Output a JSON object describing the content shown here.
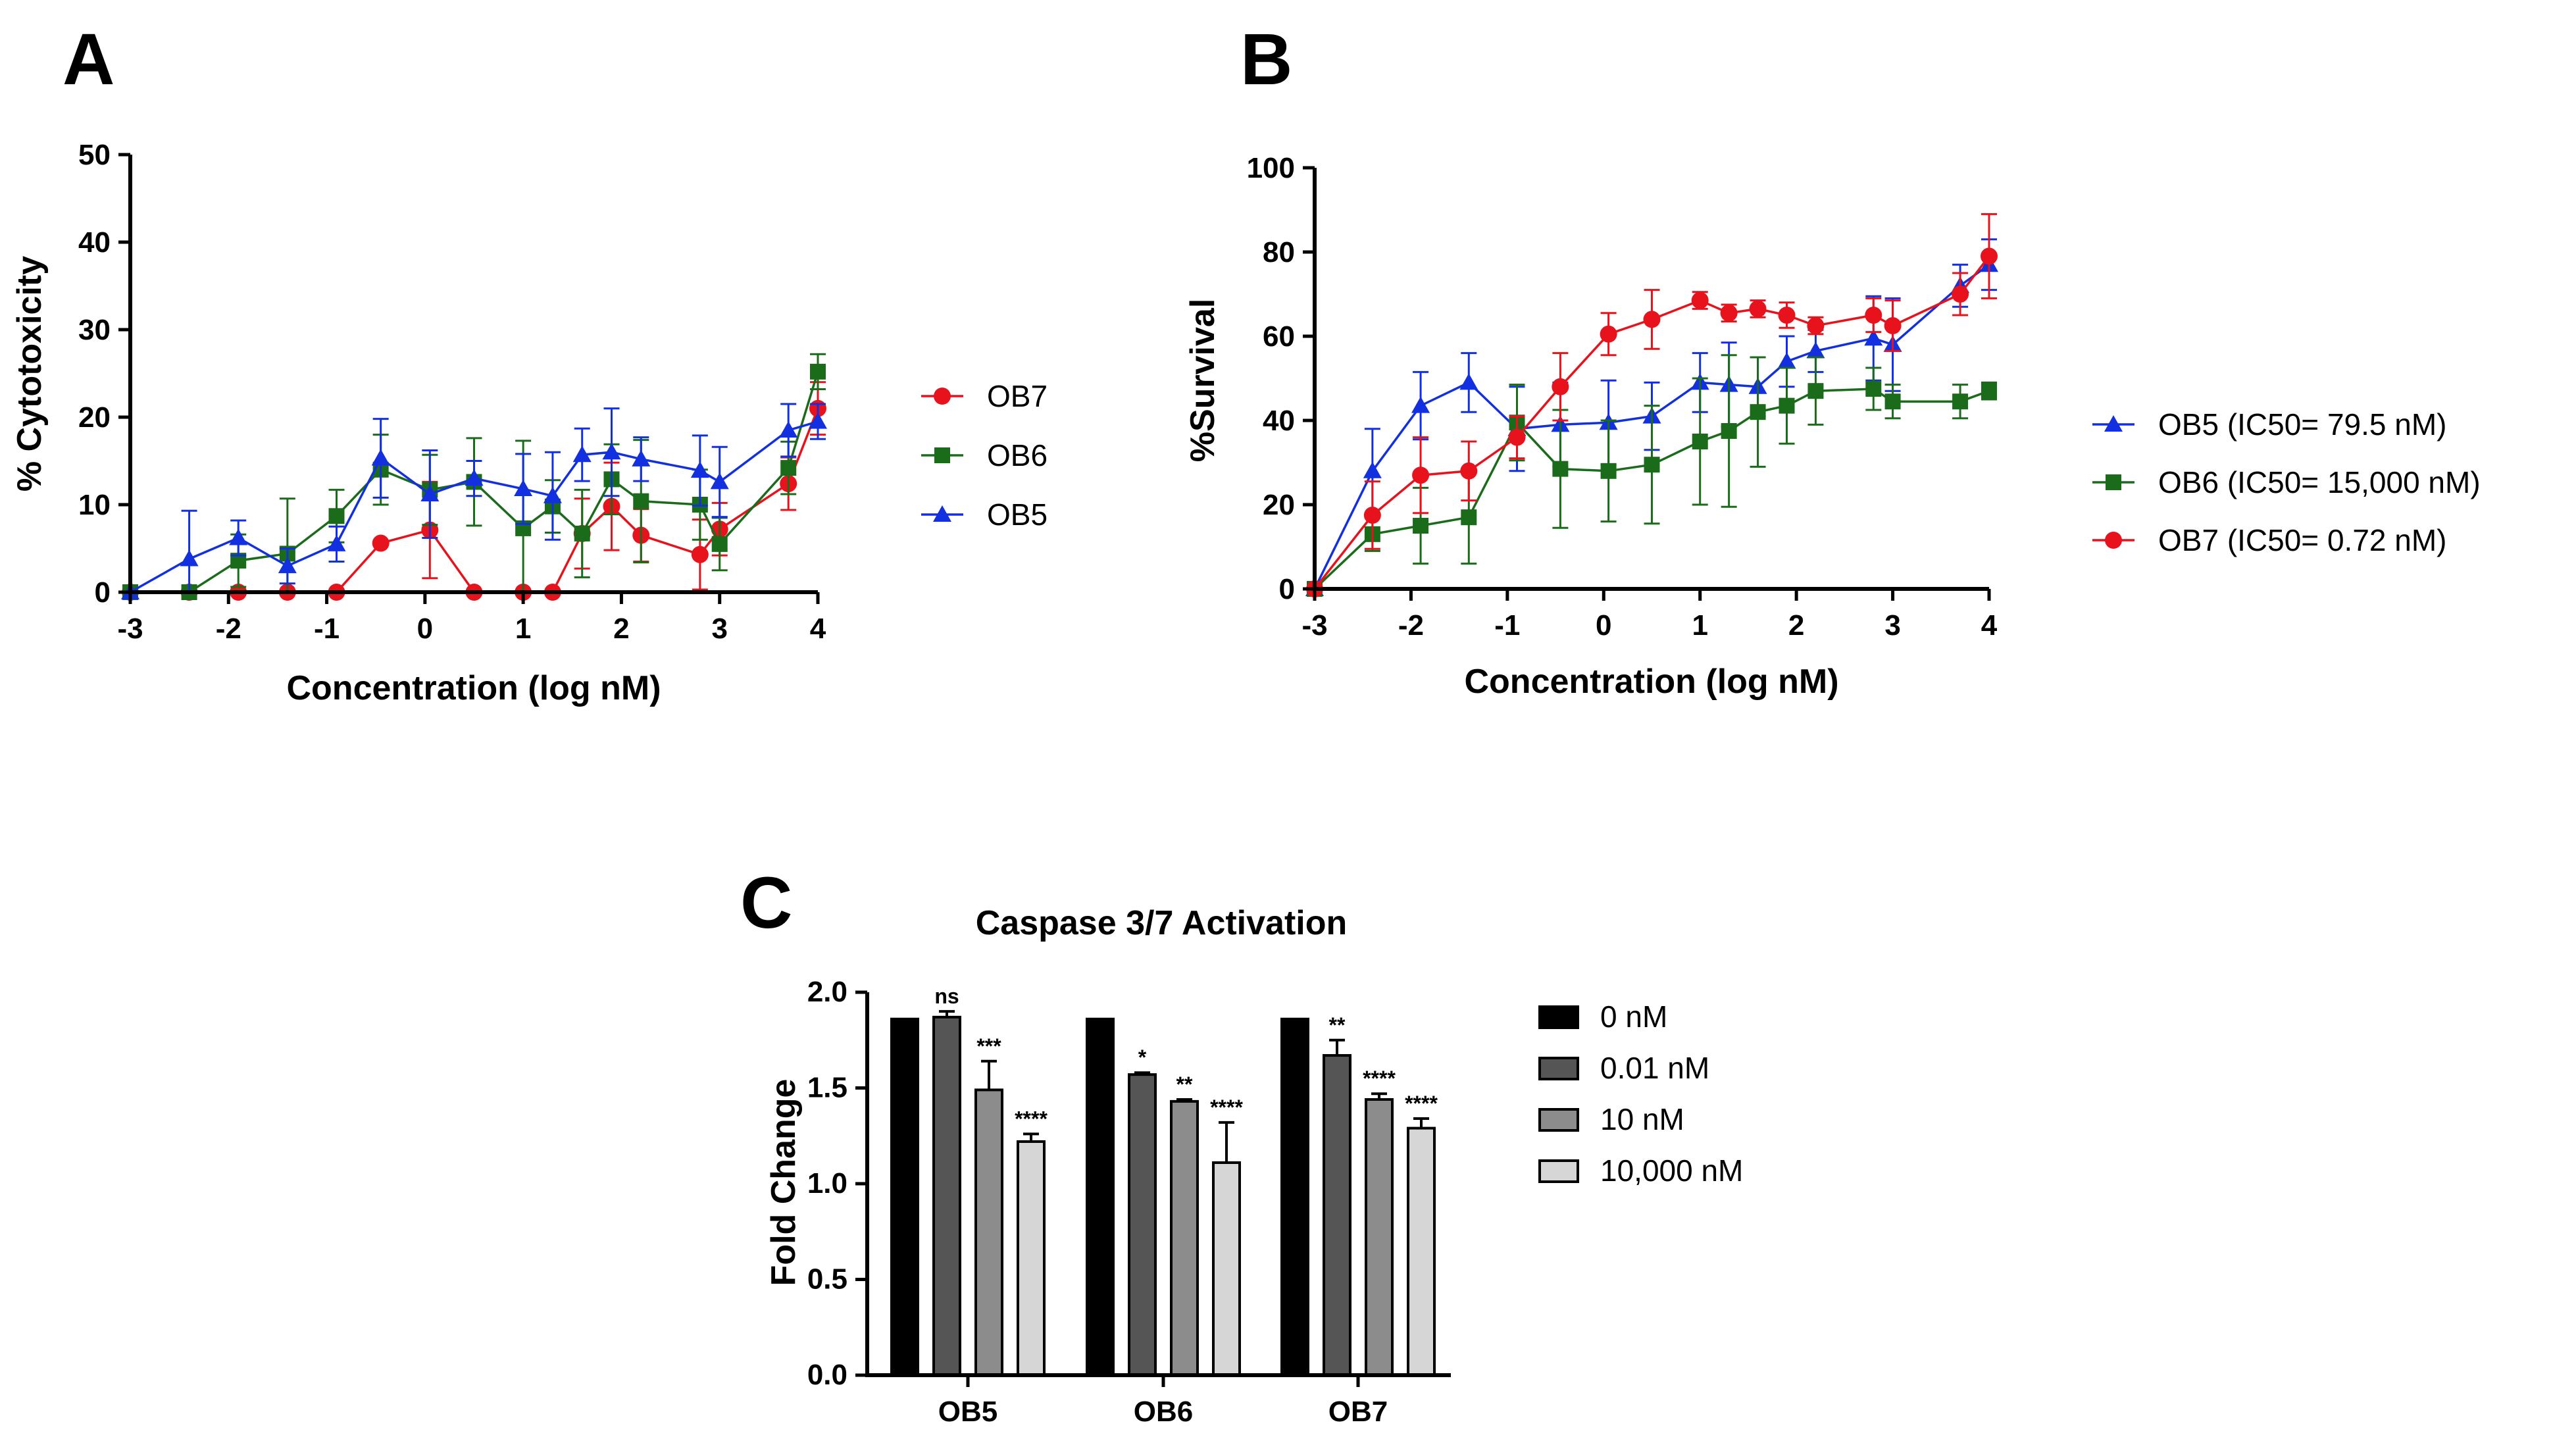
{
  "colors": {
    "OB7": "#e8121c",
    "OB6": "#1a6b1a",
    "OB5": "#1230e0",
    "bar0": "#000000",
    "bar001": "#555555",
    "bar10": "#8c8c8c",
    "bar10000": "#d6d6d6"
  },
  "panel_letters": {
    "a": "A",
    "b": "B",
    "c": "C"
  },
  "chart_data": [
    {
      "id": "A",
      "type": "line",
      "title": "",
      "xlabel": "Concentration (log nM)",
      "ylabel": "% Cytotoxicity",
      "xlim": [
        -3,
        4
      ],
      "ylim": [
        0,
        50
      ],
      "xticks": [
        -3,
        -2,
        -1,
        0,
        1,
        2,
        3,
        4
      ],
      "xtick_labels": [
        "-3",
        "-2",
        "-1",
        "0",
        "1",
        "2",
        "3",
        "4"
      ],
      "yticks": [
        0,
        10,
        20,
        30,
        40,
        50
      ],
      "ytick_labels": [
        "0",
        "10",
        "20",
        "30",
        "40",
        "50"
      ],
      "legend": [
        "OB7",
        "OB6",
        "OB5"
      ],
      "series": [
        {
          "name": "OB7",
          "marker": "circle",
          "x": [
            -3,
            -2.4,
            -1.9,
            -1.4,
            -0.9,
            -0.45,
            0.05,
            0.5,
            1.0,
            1.3,
            1.6,
            1.9,
            2.2,
            2.8,
            3.0,
            3.7,
            4.0
          ],
          "y": [
            0,
            0,
            0,
            0,
            0,
            5.6,
            7.1,
            0,
            0,
            0,
            6.7,
            9.8,
            6.5,
            4.3,
            7.2,
            12.4,
            21.0
          ],
          "err": [
            0,
            0,
            0,
            0,
            0,
            0,
            5.5,
            0,
            0,
            0,
            4.0,
            5.0,
            3.0,
            4.0,
            3.0,
            3.0,
            3.0
          ]
        },
        {
          "name": "OB6",
          "marker": "square",
          "x": [
            -3,
            -2.4,
            -1.9,
            -1.4,
            -0.9,
            -0.45,
            0.05,
            0.5,
            1.0,
            1.3,
            1.6,
            1.9,
            2.2,
            2.8,
            3.0,
            3.7,
            4.0
          ],
          "y": [
            0,
            0,
            3.6,
            4.4,
            8.7,
            14.0,
            11.7,
            12.6,
            7.3,
            9.8,
            6.7,
            12.9,
            10.4,
            10.0,
            5.5,
            14.2,
            25.2
          ],
          "err": [
            0,
            0,
            3.0,
            6.3,
            3.0,
            4.0,
            4.0,
            5.0,
            10.0,
            3.0,
            5.0,
            4.0,
            7.0,
            4.0,
            3.0,
            3.0,
            2.0
          ]
        },
        {
          "name": "OB5",
          "marker": "triangle",
          "x": [
            -3,
            -2.4,
            -1.9,
            -1.4,
            -0.9,
            -0.45,
            0.05,
            0.5,
            1.0,
            1.3,
            1.6,
            1.9,
            2.2,
            2.8,
            3.0,
            3.7,
            4.0
          ],
          "y": [
            0,
            3.8,
            6.2,
            3.0,
            5.5,
            15.3,
            11.2,
            13.0,
            11.8,
            11.0,
            15.7,
            16.0,
            15.2,
            13.9,
            12.6,
            18.5,
            19.5
          ],
          "err": [
            0,
            5.5,
            2.0,
            2.0,
            2.0,
            4.5,
            5.0,
            2.0,
            4.0,
            5.0,
            3.0,
            5.0,
            2.5,
            4.0,
            4.0,
            3.0,
            2.0
          ]
        }
      ]
    },
    {
      "id": "B",
      "type": "line",
      "title": "",
      "xlabel": "Concentration (log nM)",
      "ylabel": "%Survival",
      "xlim": [
        -3,
        4
      ],
      "ylim": [
        0,
        100
      ],
      "xticks": [
        -3,
        -2,
        -1,
        0,
        1,
        2,
        3,
        4
      ],
      "xtick_labels": [
        "-3",
        "-2",
        "-1",
        "0",
        "1",
        "2",
        "3",
        "4"
      ],
      "yticks": [
        0,
        20,
        40,
        60,
        80,
        100
      ],
      "ytick_labels": [
        "0",
        "20",
        "40",
        "60",
        "80",
        "100"
      ],
      "legend": [
        "OB5 (IC50= 79.5 nM)",
        "OB6 (IC50= 15,000 nM)",
        "OB7 (IC50= 0.72 nM)"
      ],
      "series": [
        {
          "name": "OB5 (IC50= 79.5 nM)",
          "marker": "triangle",
          "color_key": "OB5",
          "x": [
            -3,
            -2.4,
            -1.9,
            -1.4,
            -0.9,
            -0.45,
            0.05,
            0.5,
            1.0,
            1.3,
            1.6,
            1.9,
            2.2,
            2.8,
            3.0,
            3.7,
            4.0
          ],
          "y": [
            0,
            28,
            43.5,
            49,
            38,
            39,
            39.5,
            41,
            49,
            48.5,
            48,
            54,
            56.5,
            59.5,
            58,
            72,
            77
          ],
          "err": [
            0,
            10,
            8,
            7,
            10,
            10,
            10,
            8,
            7,
            10,
            7,
            6,
            5,
            10,
            11,
            5,
            6
          ]
        },
        {
          "name": "OB6 (IC50= 15,000 nM)",
          "marker": "square",
          "color_key": "OB6",
          "x": [
            -3,
            -2.4,
            -1.9,
            -1.4,
            -0.9,
            -0.45,
            0.05,
            0.5,
            1.0,
            1.3,
            1.6,
            1.9,
            2.2,
            2.8,
            3.0,
            3.7,
            4.0
          ],
          "y": [
            0,
            13,
            15,
            17,
            39.5,
            28.5,
            28,
            29.5,
            35,
            37.5,
            42,
            43.5,
            47,
            47.5,
            44.5,
            44.5,
            47
          ],
          "err": [
            0,
            4,
            9,
            11,
            9,
            14,
            12,
            14,
            15,
            18,
            13,
            9,
            8,
            5,
            4,
            4,
            2
          ]
        },
        {
          "name": "OB7 (IC50= 0.72 nM)",
          "marker": "circle",
          "color_key": "OB7",
          "x": [
            -3,
            -2.4,
            -1.9,
            -1.4,
            -0.9,
            -0.45,
            0.05,
            0.5,
            1.0,
            1.3,
            1.6,
            1.9,
            2.2,
            2.8,
            3.0,
            3.7,
            4.0
          ],
          "y": [
            0,
            17.5,
            27,
            28,
            36,
            48,
            60.5,
            64,
            68.5,
            65.5,
            66.5,
            65,
            62.5,
            65,
            62.5,
            70,
            79
          ],
          "err": [
            0,
            8,
            9,
            7,
            5,
            8,
            5,
            7,
            2,
            2,
            2,
            3,
            2,
            4,
            6,
            5,
            10
          ]
        }
      ]
    },
    {
      "id": "C",
      "type": "bar",
      "title": "Caspase 3/7 Activation",
      "xlabel": "",
      "ylabel": "Fold Change",
      "ylim": [
        0,
        2.0
      ],
      "yticks": [
        0,
        0.5,
        1.0,
        1.5,
        2.0
      ],
      "ytick_labels": [
        "0.0",
        "0.5",
        "1.0",
        "1.5",
        "2.0"
      ],
      "categories": [
        "OB5",
        "OB6",
        "OB7"
      ],
      "legend": [
        "0 nM",
        "0.01 nM",
        "10 nM",
        "10,000 nM"
      ],
      "series": [
        {
          "name": "0 nM",
          "color_key": "bar0",
          "values": [
            1.86,
            1.86,
            1.86
          ],
          "err": [
            0,
            0,
            0
          ],
          "sig": [
            "",
            "",
            ""
          ]
        },
        {
          "name": "0.01 nM",
          "color_key": "bar001",
          "values": [
            1.87,
            1.57,
            1.67
          ],
          "err": [
            0.03,
            0.01,
            0.08
          ],
          "sig": [
            "ns",
            "*",
            "**"
          ]
        },
        {
          "name": "10 nM",
          "color_key": "bar10",
          "values": [
            1.49,
            1.43,
            1.44
          ],
          "err": [
            0.15,
            0.01,
            0.03
          ],
          "sig": [
            "***",
            "**",
            "****"
          ]
        },
        {
          "name": "10,000 nM",
          "color_key": "bar10000",
          "values": [
            1.22,
            1.11,
            1.29
          ],
          "err": [
            0.04,
            0.21,
            0.05
          ],
          "sig": [
            "****",
            "****",
            "****"
          ]
        }
      ]
    }
  ]
}
